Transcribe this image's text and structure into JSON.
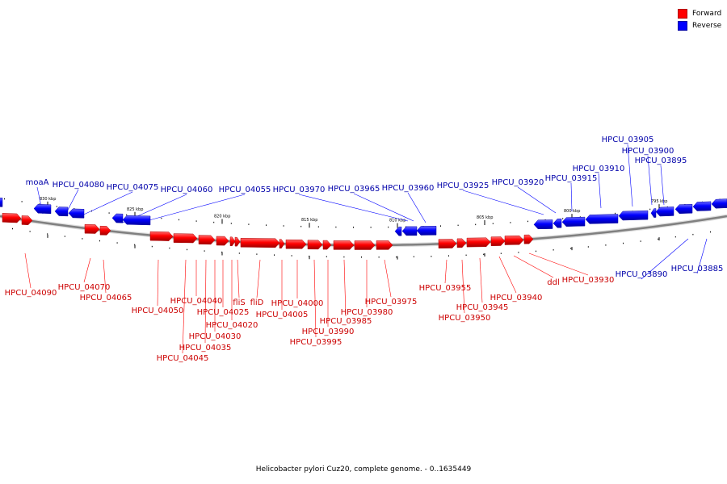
{
  "colors": {
    "forward": "#ff0000",
    "forward_shade": "#b00000",
    "reverse": "#0000ff",
    "reverse_shade": "#0000a8",
    "backbone": "#808080",
    "forward_label": "#cc0000",
    "reverse_label": "#0000aa"
  },
  "legend": {
    "forward": "Forward",
    "reverse": "Reverse"
  },
  "caption": "Helicobacter pylori Cuz20, complete genome. - 0..1635449",
  "scale_labels": [
    "830 kbp",
    "825 kbp",
    "820 kbp",
    "815 kbp",
    "810 kbp",
    "805 kbp",
    "800 kbp",
    "795 kbp"
  ],
  "reverse_genes": [
    {
      "label": "moaA"
    },
    {
      "label": "HPCU_04080"
    },
    {
      "label": "HPCU_04075"
    },
    {
      "label": "HPCU_04060"
    },
    {
      "label": "HPCU_04055"
    },
    {
      "label": "HPCU_03970"
    },
    {
      "label": "HPCU_03965"
    },
    {
      "label": "HPCU_03960"
    },
    {
      "label": "HPCU_03925"
    },
    {
      "label": "HPCU_03920"
    },
    {
      "label": "HPCU_03915"
    },
    {
      "label": "HPCU_03910"
    },
    {
      "label": "HPCU_03905"
    },
    {
      "label": "HPCU_03900"
    },
    {
      "label": "HPCU_03895"
    },
    {
      "label": "HPCU_03890"
    },
    {
      "label": "HPCU_03885"
    }
  ],
  "forward_genes": [
    {
      "label": "HPCU_04090"
    },
    {
      "label": "HPCU_04070"
    },
    {
      "label": "HPCU_04065"
    },
    {
      "label": "HPCU_04050"
    },
    {
      "label": "HPCU_04045"
    },
    {
      "label": "HPCU_04040"
    },
    {
      "label": "HPCU_04035"
    },
    {
      "label": "HPCU_04030"
    },
    {
      "label": "HPCU_04025"
    },
    {
      "label": "HPCU_04020"
    },
    {
      "label": "fliS"
    },
    {
      "label": "fliD"
    },
    {
      "label": "HPCU_04005"
    },
    {
      "label": "HPCU_04000"
    },
    {
      "label": "HPCU_03995"
    },
    {
      "label": "HPCU_03990"
    },
    {
      "label": "HPCU_03985"
    },
    {
      "label": "HPCU_03980"
    },
    {
      "label": "HPCU_03975"
    },
    {
      "label": "HPCU_03955"
    },
    {
      "label": "HPCU_03950"
    },
    {
      "label": "HPCU_03945"
    },
    {
      "label": "HPCU_03940"
    },
    {
      "label": "ddl"
    },
    {
      "label": "HPCU_03930"
    }
  ]
}
